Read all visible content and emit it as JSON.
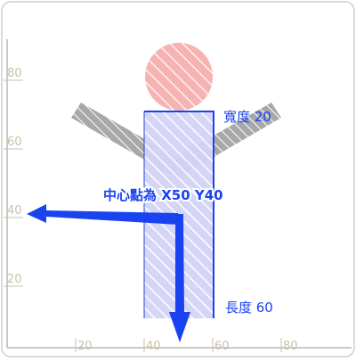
{
  "axes": {
    "x_ticks": [
      "20",
      "40",
      "60",
      "80"
    ],
    "y_ticks": [
      "80",
      "60",
      "40",
      "20"
    ]
  },
  "annotations": {
    "width_label": "寬度 20",
    "height_label": "長度 60",
    "center_label": "中心點為 X50 Y40"
  },
  "colors": {
    "accent": "#1a43f0",
    "head": "#f39a9a",
    "body_fill": "#ccccf7",
    "arms": "#9a9a9a",
    "axis": "#b8b8b8",
    "tick_text": "#c9c1a9"
  }
}
